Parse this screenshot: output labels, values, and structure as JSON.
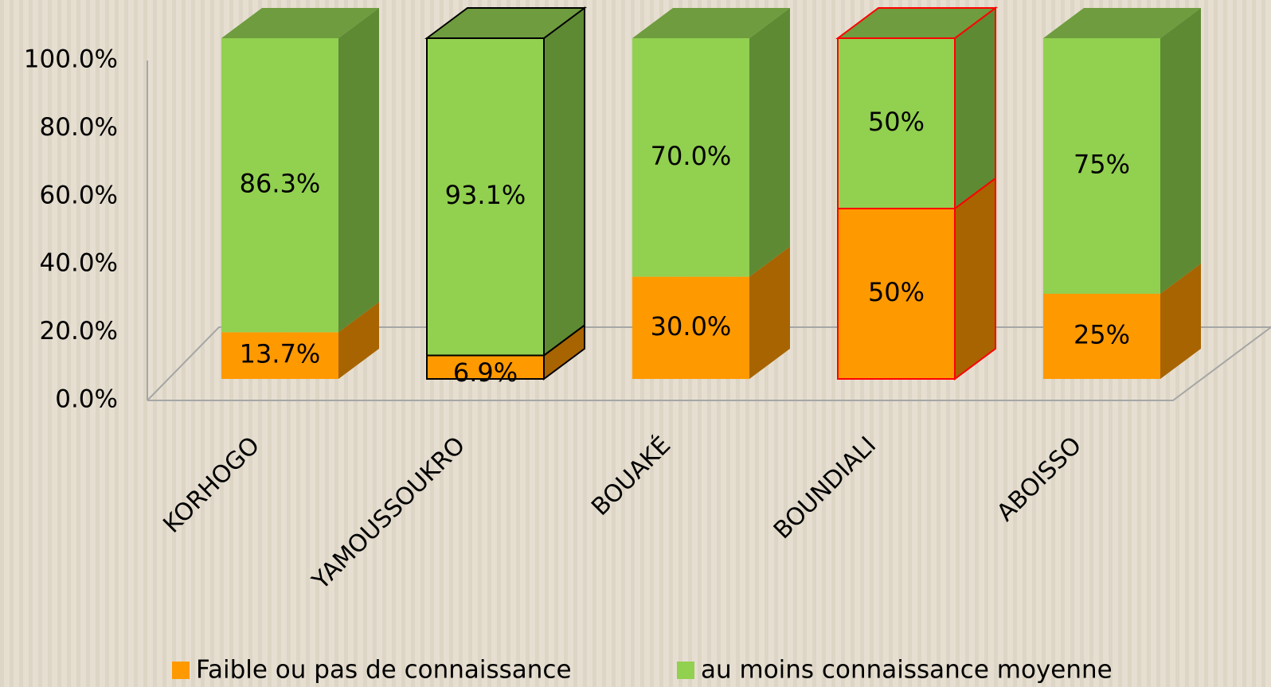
{
  "chart_data": {
    "type": "stacked_bar_3d",
    "categories": [
      "KORHOGO",
      "YAMOUSSOUKRO",
      "BOUAKÉ",
      "BOUNDIALI",
      "ABOISSO"
    ],
    "series": [
      {
        "name": "Faible ou pas de connaissance",
        "color": "#ff9900",
        "side_color": "#a86400",
        "top_color": "#b86e00",
        "values": [
          13.7,
          6.9,
          30.0,
          50,
          25
        ],
        "value_labels": [
          "13.7%",
          "6.9%",
          "30.0%",
          "50%",
          "25%"
        ]
      },
      {
        "name": "au moins connaissance moyenne",
        "color": "#92d050",
        "side_color": "#5e8a34",
        "top_color": "#6e9c3e",
        "values": [
          86.3,
          93.1,
          70.0,
          50,
          75
        ],
        "value_labels": [
          "86.3%",
          "93.1%",
          "70.0%",
          "50%",
          "75%"
        ]
      }
    ],
    "edge_colors": [
      null,
      "#000000",
      null,
      "#ff0000",
      null
    ],
    "ylim": [
      0,
      100
    ],
    "yticks": [
      {
        "value": 0,
        "label": "0.0%"
      },
      {
        "value": 20,
        "label": "20.0%"
      },
      {
        "value": 40,
        "label": "40.0%"
      },
      {
        "value": 60,
        "label": "60.0%"
      },
      {
        "value": 80,
        "label": "80.0%"
      },
      {
        "value": 100,
        "label": "100.0%"
      }
    ],
    "legend": "bottom"
  }
}
